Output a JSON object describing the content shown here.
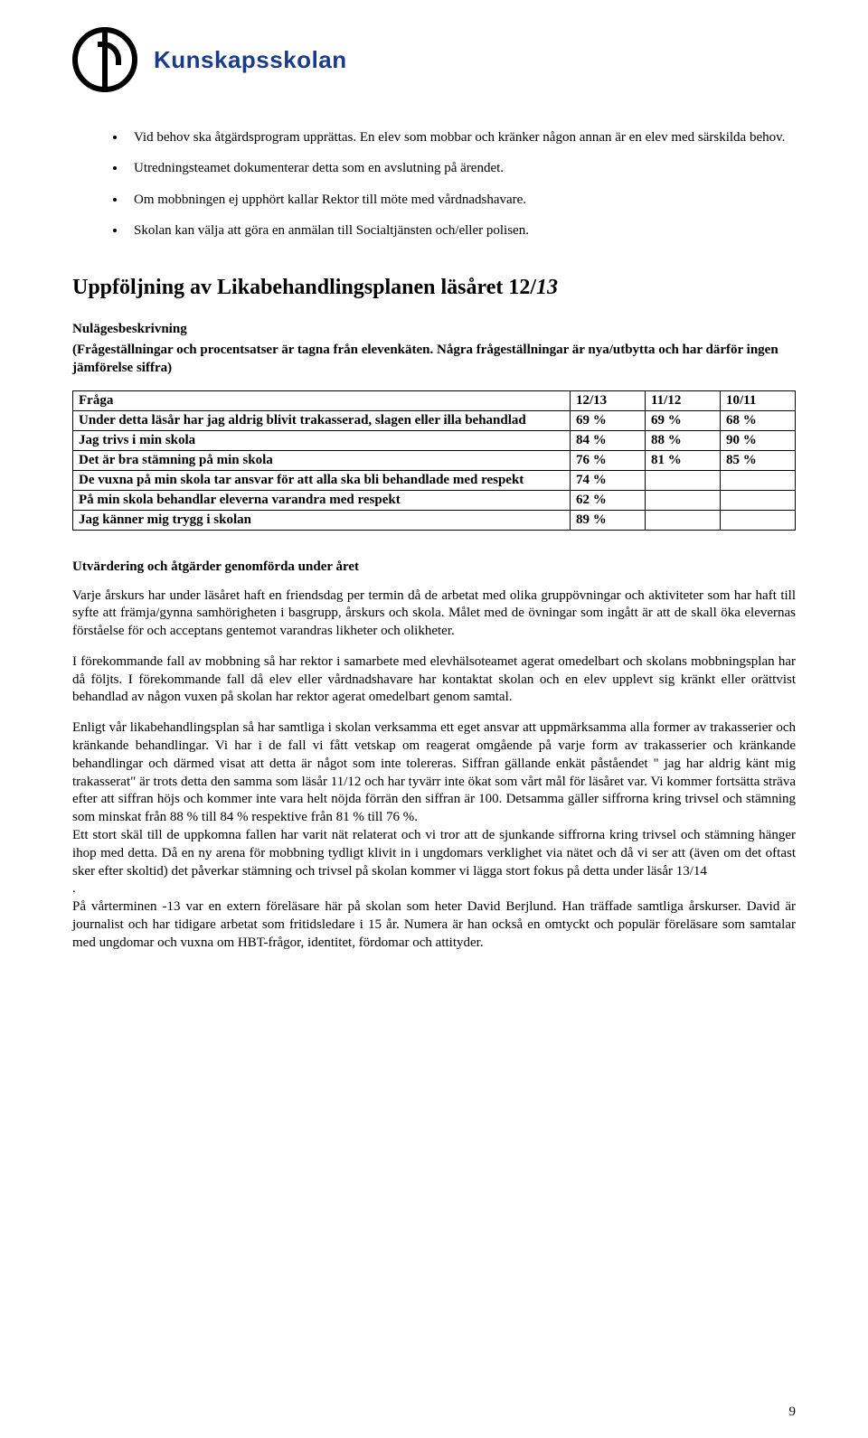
{
  "brand": "Kunskapsskolan",
  "bullets": [
    "Vid behov ska åtgärdsprogram upprättas. En elev som mobbar och kränker någon annan är en elev med särskilda behov.",
    "Utredningsteamet dokumenterar detta som en avslutning på ärendet.",
    "Om mobbningen ej upphört kallar Rektor till möte med vårdnadshavare.",
    "Skolan kan välja att göra en anmälan till Socialtjänsten och/eller polisen."
  ],
  "section_title_pre": "Uppföljning av Likabehandlingsplanen läsåret 12/",
  "section_title_em": "13",
  "subhead": "Nulägesbeskrivning",
  "subnote": "(Frågeställningar och procentsatser är tagna från elevenkäten. Några frågeställningar är nya/utbytta och har därför ingen jämförelse siffra)",
  "table": {
    "header": [
      "Fråga",
      "12/13",
      "11/12",
      "10/11"
    ],
    "rows": [
      [
        "Under detta läsår har jag aldrig blivit trakasserad, slagen eller illa behandlad",
        "69 %",
        "69 %",
        "68 %"
      ],
      [
        "Jag trivs i min skola",
        "84 %",
        "88 %",
        "90 %"
      ],
      [
        "Det är bra stämning på min skola",
        "76 %",
        "81 %",
        "85 %"
      ],
      [
        "De vuxna på min skola tar ansvar för att alla ska bli behandlade med respekt",
        "74 %",
        "",
        ""
      ],
      [
        "På min skola behandlar eleverna varandra med respekt",
        "62 %",
        "",
        ""
      ],
      [
        "Jag känner mig trygg i skolan",
        "89 %",
        "",
        ""
      ]
    ]
  },
  "eval_head": "Utvärdering och åtgärder genomförda under året",
  "paragraphs": [
    "Varje årskurs har under läsåret haft en friendsdag per termin då de arbetat med olika gruppövningar och aktiviteter som har haft till syfte att främja/gynna samhörigheten i basgrupp, årskurs och skola. Målet med de övningar som ingått är att de skall öka elevernas förståelse för och acceptans gentemot varandras likheter och olikheter.",
    "I förekommande fall av mobbning så har rektor i samarbete med elevhälsoteamet agerat omedelbart och skolans mobbningsplan har då följts. I förekommande fall då elev eller vårdnadshavare har kontaktat skolan och en elev upplevt sig kränkt eller orättvist behandlad av någon vuxen på skolan har rektor agerat omedelbart genom samtal.",
    "Enligt vår likabehandlingsplan så har samtliga i skolan verksamma ett eget ansvar att uppmärksamma alla former av trakasserier och kränkande behandlingar. Vi har i de fall vi fått vetskap om reagerat omgående på varje form av trakasserier och kränkande behandlingar och därmed visat att detta är något som inte tolereras. Siffran gällande enkät påståendet \" jag har aldrig känt mig trakasserat\" är trots detta den samma som läsår 11/12 och har tyvärr inte ökat som vårt mål för läsåret var. Vi kommer fortsätta sträva efter att siffran höjs och kommer inte vara helt nöjda förrän den siffran är 100. Detsamma gäller siffrorna kring trivsel och stämning som minskat från 88 % till 84 % respektive från 81 % till 76 %.",
    "Ett stort skäl till de uppkomna fallen har varit nät relaterat och vi tror att de sjunkande siffrorna kring trivsel och stämning hänger ihop med detta. Då en ny arena för mobbning tydligt klivit in i ungdomars verklighet via nätet och då vi ser att (även om det oftast sker efter skoltid) det påverkar stämning och trivsel på skolan kommer vi lägga stort fokus på detta under läsår 13/14\n.",
    "På vårterminen -13 var en extern föreläsare här på skolan som heter David Berjlund. Han träffade samtliga årskurser. David är journalist och har tidigare arbetat som fritidsledare i 15 år. Numera är han också en omtyckt och populär föreläsare som samtalar med ungdomar och vuxna om HBT-frågor, identitet, fördomar och attityder."
  ],
  "page_number": "9"
}
